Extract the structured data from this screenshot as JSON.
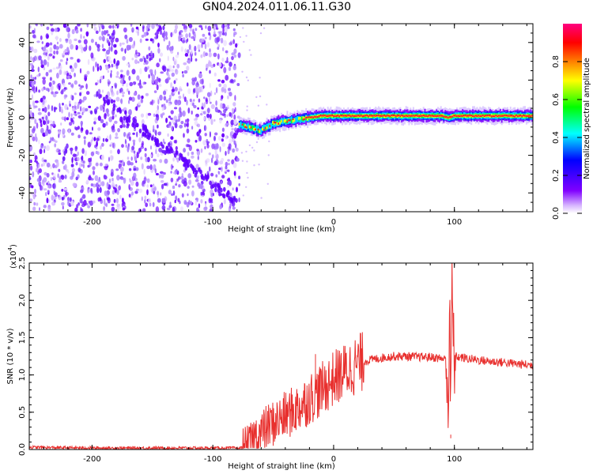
{
  "title": "GN04.2024.011.06.11.G30",
  "chart_data": [
    {
      "type": "heatmap",
      "xlabel": "Height of straight line (km)",
      "ylabel": "Frequency (Hz)",
      "xlim": [
        -252,
        165
      ],
      "ylim": [
        -50,
        50
      ],
      "x_ticks": [
        -200,
        -100,
        0,
        100
      ],
      "y_ticks": [
        -40,
        -20,
        0,
        20,
        40
      ],
      "grid": false,
      "colorbar": {
        "label": "Normalized spectral amplitude",
        "range": [
          0,
          1
        ],
        "ticks": [
          "0.0",
          "0.2",
          "0.4",
          "0.6",
          "0.8"
        ],
        "colors": [
          "#ffffff",
          "#8000ff",
          "#0000ff",
          "#00ffff",
          "#00ff00",
          "#ffff00",
          "#ff8000",
          "#ff0000",
          "#ff0080"
        ]
      },
      "noise_region_x": [
        -252,
        -78
      ],
      "signal_ridge": {
        "x": [
          -78,
          -70,
          -60,
          -50,
          -40,
          -30,
          -20,
          -10,
          0,
          20,
          40,
          60,
          80,
          90,
          95,
          100,
          120,
          140,
          165
        ],
        "frequency": [
          -4,
          -5,
          -7,
          -3,
          -2,
          -1,
          0,
          1,
          1,
          1,
          1,
          1,
          1,
          1,
          0,
          1,
          1,
          1,
          1
        ]
      }
    },
    {
      "type": "line",
      "xlabel": "Height of straight line (km)",
      "ylabel": "SNR (10 * v/v)",
      "yscale_label": "(x10",
      "yscale_exp": "4",
      "yscale_close": ")",
      "xlim": [
        -252,
        165
      ],
      "ylim": [
        0,
        2.5
      ],
      "x_ticks": [
        -200,
        -100,
        0,
        100
      ],
      "y_ticks": [
        "0.0",
        "0.5",
        "1.0",
        "1.5",
        "2.0",
        "2.5"
      ],
      "grid": false,
      "series": [
        {
          "color": "#e8302e",
          "x": [
            -252,
            -200,
            -150,
            -100,
            -80,
            -70,
            -65,
            -60,
            -55,
            -50,
            -45,
            -40,
            -35,
            -30,
            -25,
            -20,
            -15,
            -10,
            -5,
            0,
            5,
            10,
            15,
            20,
            25,
            30,
            40,
            50,
            60,
            70,
            80,
            90,
            94,
            95,
            96,
            97,
            98,
            99,
            100,
            110,
            120,
            130,
            140,
            150,
            165
          ],
          "y": [
            0.03,
            0.02,
            0.02,
            0.02,
            0.02,
            0.03,
            0.18,
            0.22,
            0.3,
            0.35,
            0.4,
            0.45,
            0.5,
            0.55,
            0.62,
            0.68,
            0.75,
            0.8,
            0.88,
            0.95,
            1.0,
            1.05,
            1.1,
            1.15,
            1.18,
            1.2,
            1.23,
            1.25,
            1.25,
            1.24,
            1.24,
            1.22,
            1.2,
            0.3,
            2.2,
            0.2,
            2.45,
            1.35,
            1.25,
            1.22,
            1.2,
            1.18,
            1.17,
            1.15,
            1.13
          ]
        }
      ]
    }
  ]
}
